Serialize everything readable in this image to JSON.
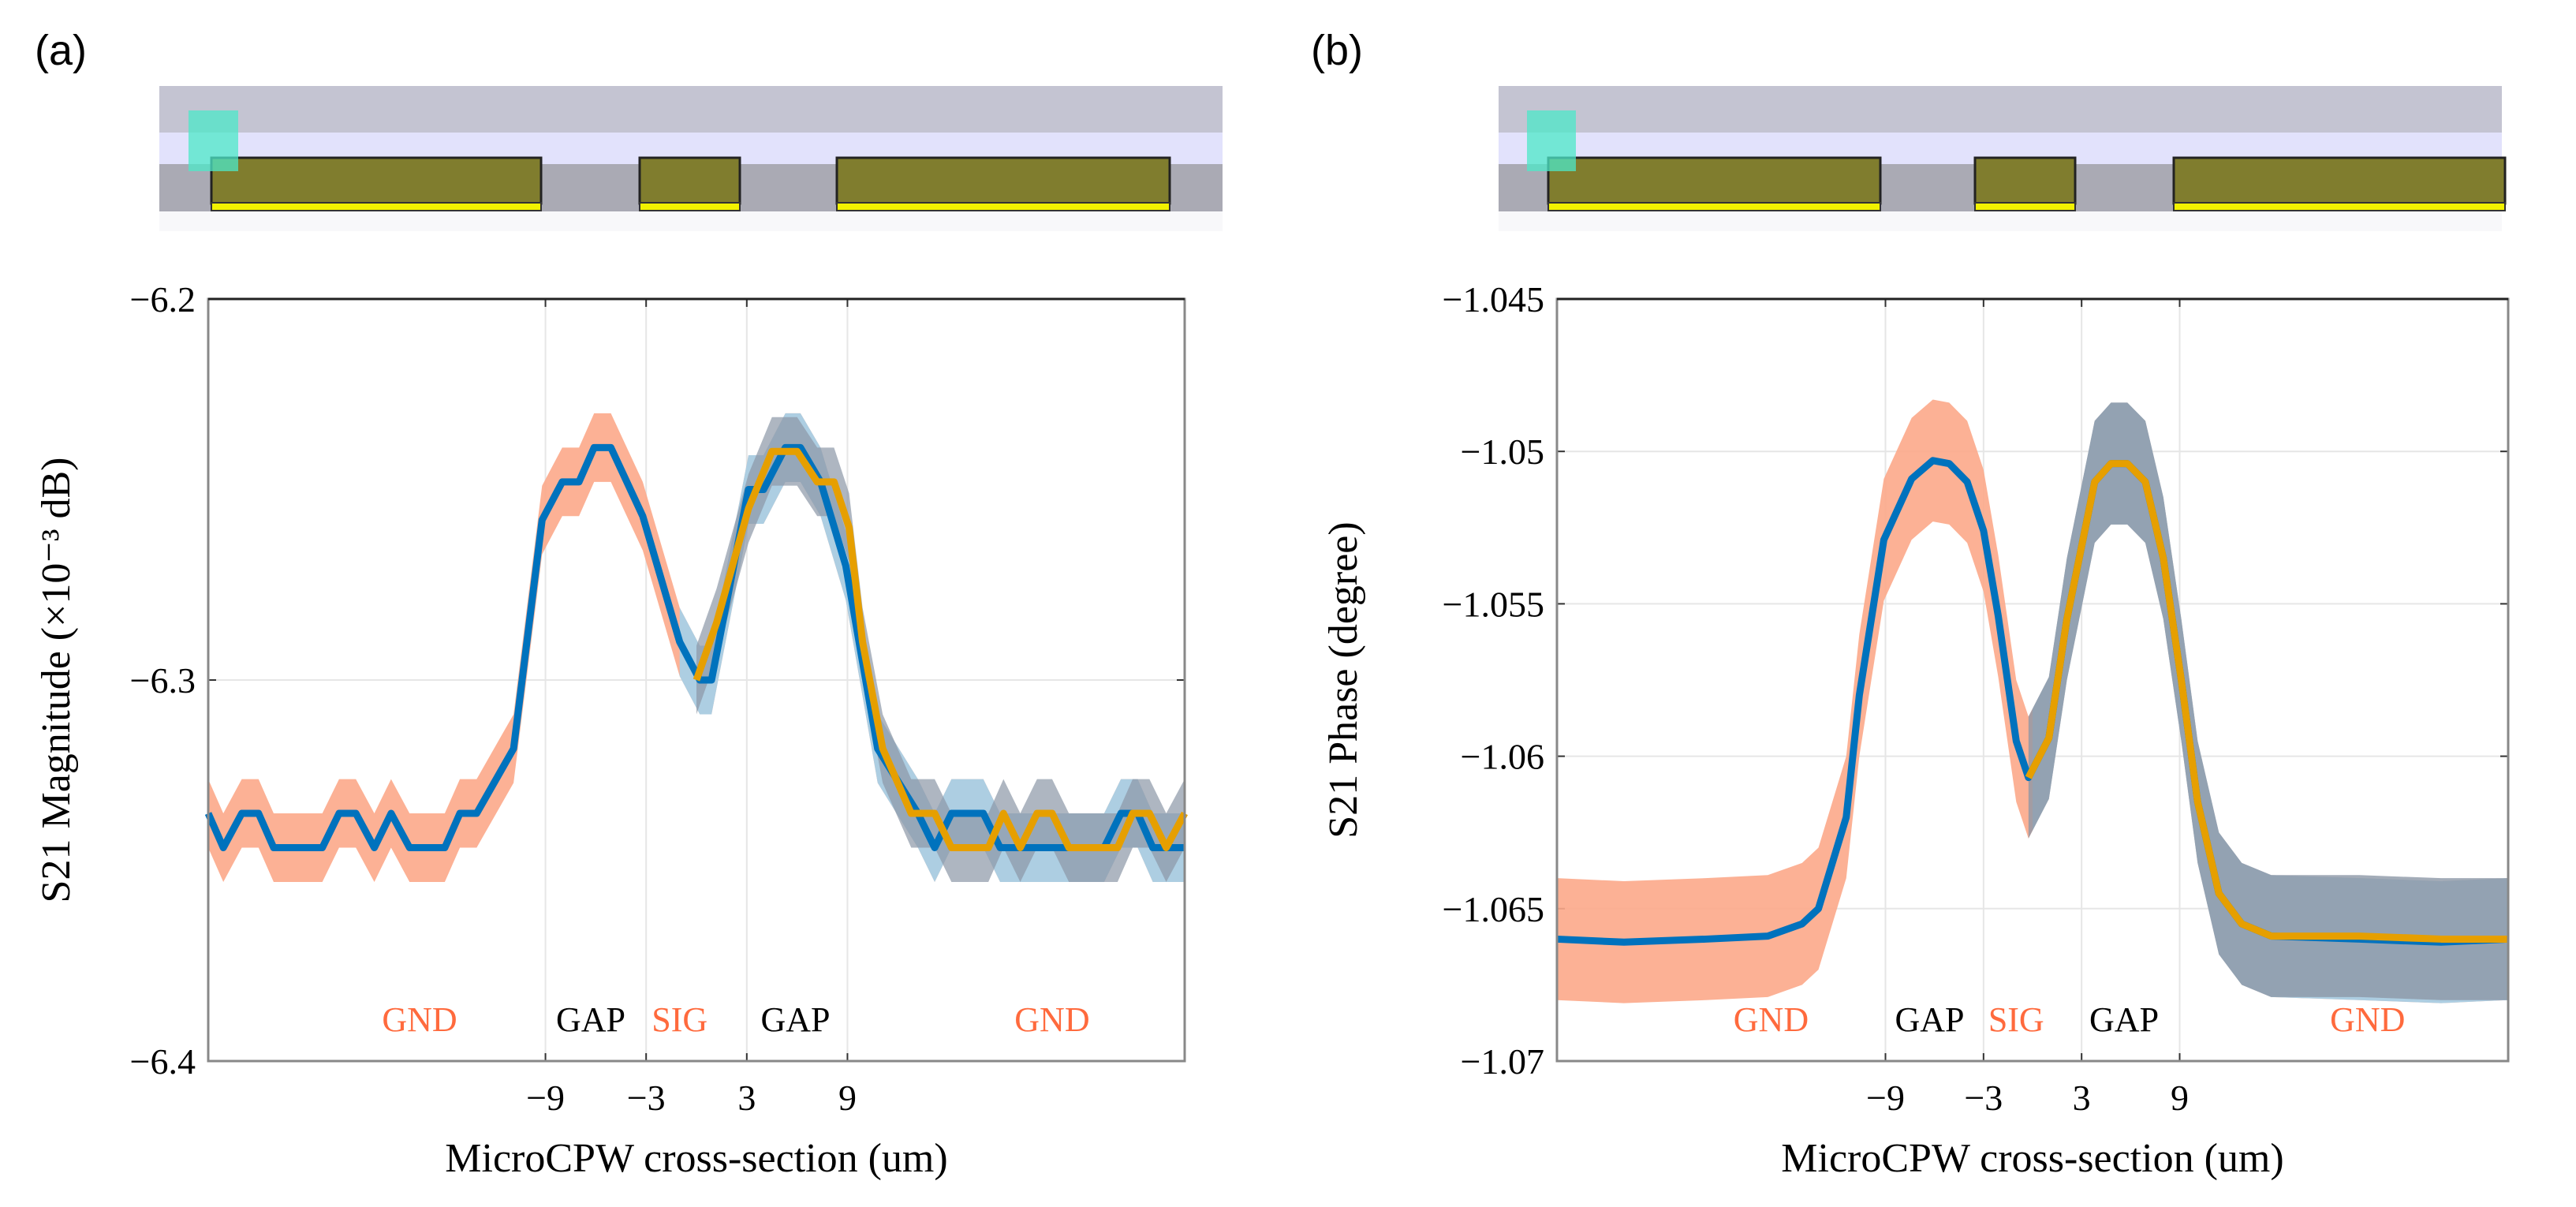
{
  "panels": [
    {
      "label": "(a)"
    },
    {
      "label": "(b)"
    }
  ],
  "diagram_colors": {
    "air_top": "#C4C4D2",
    "dielectric": "#E2E2FC",
    "substrate": "#AAAAB4",
    "metal": "#807D2E",
    "metal_base": "#F2F200",
    "probe": "#4CE8C8"
  },
  "chart_data": [
    {
      "type": "line",
      "title": "",
      "xlabel": "MicroCPW cross-section (um)",
      "ylabel": "S21 Magnitude (×10⁻³ dB)",
      "xlim": [
        -29.1,
        29.1
      ],
      "ylim": [
        -6.4,
        -6.2
      ],
      "xticks": [
        -9,
        -3,
        3,
        9
      ],
      "xtick_labels": [
        "−9",
        "−3",
        "3",
        "9"
      ],
      "yticks": [
        -6.2,
        -6.3,
        -6.4
      ],
      "ytick_labels": [
        "−6.2",
        "−6.3",
        "−6.4"
      ],
      "grid": true,
      "series": [
        {
          "color": "#0072BD",
          "points": [
            [
              -29.1,
              -6.335
            ],
            [
              -28.2,
              -6.344
            ],
            [
              -27.1,
              -6.335
            ],
            [
              -26.1,
              -6.335
            ],
            [
              -25.2,
              -6.344
            ],
            [
              -22.3,
              -6.344
            ],
            [
              -21.3,
              -6.335
            ],
            [
              -20.3,
              -6.335
            ],
            [
              -19.2,
              -6.344
            ],
            [
              -18.2,
              -6.335
            ],
            [
              -17.1,
              -6.344
            ],
            [
              -15,
              -6.344
            ],
            [
              -14.1,
              -6.335
            ],
            [
              -13.1,
              -6.335
            ],
            [
              -10.9,
              -6.318
            ],
            [
              -9.2,
              -6.258
            ],
            [
              -8,
              -6.248
            ],
            [
              -7,
              -6.248
            ],
            [
              -6.1,
              -6.239
            ],
            [
              -5.1,
              -6.239
            ],
            [
              -3.2,
              -6.257
            ],
            [
              -1,
              -6.29
            ],
            [
              0.2,
              -6.3
            ],
            [
              0.9,
              -6.3
            ],
            [
              3.1,
              -6.25
            ],
            [
              4,
              -6.25
            ],
            [
              5.3,
              -6.239
            ],
            [
              6.2,
              -6.239
            ],
            [
              7.4,
              -6.248
            ],
            [
              8.9,
              -6.27
            ],
            [
              10.8,
              -6.318
            ],
            [
              13.2,
              -6.335
            ],
            [
              14.2,
              -6.344
            ],
            [
              15.2,
              -6.335
            ],
            [
              17.1,
              -6.335
            ],
            [
              18.1,
              -6.344
            ],
            [
              24.3,
              -6.344
            ],
            [
              25.3,
              -6.335
            ],
            [
              26.3,
              -6.335
            ],
            [
              27.2,
              -6.344
            ],
            [
              29.1,
              -6.344
            ]
          ]
        },
        {
          "color": "#E69F00",
          "points": [
            [
              0,
              -6.3
            ],
            [
              1.2,
              -6.285
            ],
            [
              3.1,
              -6.255
            ],
            [
              4.5,
              -6.24
            ],
            [
              6,
              -6.24
            ],
            [
              7.2,
              -6.248
            ],
            [
              8.2,
              -6.248
            ],
            [
              9.1,
              -6.26
            ],
            [
              9.9,
              -6.29
            ],
            [
              11.1,
              -6.318
            ],
            [
              12.8,
              -6.335
            ],
            [
              14.2,
              -6.335
            ],
            [
              15.2,
              -6.344
            ],
            [
              17.4,
              -6.344
            ],
            [
              18.3,
              -6.335
            ],
            [
              19.3,
              -6.344
            ],
            [
              20.3,
              -6.335
            ],
            [
              21.2,
              -6.335
            ],
            [
              22.2,
              -6.344
            ],
            [
              25.1,
              -6.344
            ],
            [
              26,
              -6.335
            ],
            [
              27,
              -6.335
            ],
            [
              28,
              -6.344
            ],
            [
              29.1,
              -6.335
            ]
          ]
        }
      ],
      "bands": [
        {
          "series": 0,
          "color": "#FCA98A",
          "opacity": 0.9,
          "from": -29.1,
          "to": 29.1,
          "halfwidth": 0.009
        },
        {
          "series": 0,
          "color": "#9FD3F0",
          "opacity": 0.85,
          "from": -1,
          "to": 29.1,
          "halfwidth": 0.009
        },
        {
          "series": 1,
          "color": "#8C97A6",
          "opacity": 0.7,
          "from": 0,
          "to": 29.1,
          "halfwidth": 0.009
        }
      ],
      "annotations": [
        {
          "text": "GND",
          "x": -16.5,
          "color": "#FF6A3D"
        },
        {
          "text": "GAP",
          "x": -6.3,
          "color": "#000000"
        },
        {
          "text": "SIG",
          "x": -1.0,
          "color": "#FF6A3D"
        },
        {
          "text": "GAP",
          "x": 5.9,
          "color": "#000000"
        },
        {
          "text": "GND",
          "x": 21.2,
          "color": "#FF6A3D"
        }
      ]
    },
    {
      "type": "line",
      "title": "",
      "xlabel": "MicroCPW cross-section (um)",
      "ylabel": "S21 Phase (degree)",
      "xlim": [
        -29.1,
        29.1
      ],
      "ylim": [
        -1.07,
        -1.045
      ],
      "xticks": [
        -9,
        -3,
        3,
        9
      ],
      "xtick_labels": [
        "−9",
        "−3",
        "3",
        "9"
      ],
      "yticks": [
        -1.045,
        -1.05,
        -1.055,
        -1.06,
        -1.065,
        -1.07
      ],
      "ytick_labels": [
        "−1.045",
        "−1.05",
        "−1.055",
        "−1.06",
        "−1.065",
        "−1.07"
      ],
      "grid": true,
      "series": [
        {
          "color": "#0072BD",
          "points": [
            [
              -29.1,
              -1.066
            ],
            [
              -25,
              -1.0661
            ],
            [
              -20,
              -1.066
            ],
            [
              -16.2,
              -1.0659
            ],
            [
              -14.1,
              -1.0655
            ],
            [
              -13.1,
              -1.065
            ],
            [
              -11.4,
              -1.062
            ],
            [
              -10.6,
              -1.058
            ],
            [
              -9.1,
              -1.0529
            ],
            [
              -7.4,
              -1.0509
            ],
            [
              -6.1,
              -1.0503
            ],
            [
              -5.1,
              -1.0504
            ],
            [
              -4,
              -1.051
            ],
            [
              -3,
              -1.0526
            ],
            [
              -2.1,
              -1.0554
            ],
            [
              -1,
              -1.0595
            ],
            [
              -0.25,
              -1.0607
            ],
            [
              1,
              -1.0594
            ],
            [
              2.1,
              -1.0555
            ],
            [
              3.8,
              -1.051
            ],
            [
              4.8,
              -1.0504
            ],
            [
              5.8,
              -1.0504
            ],
            [
              6.9,
              -1.051
            ],
            [
              8,
              -1.0535
            ],
            [
              9.1,
              -1.0575
            ],
            [
              10.1,
              -1.0615
            ],
            [
              11.4,
              -1.0645
            ],
            [
              12.8,
              -1.0655
            ],
            [
              14.6,
              -1.0659
            ],
            [
              20,
              -1.066
            ],
            [
              25,
              -1.0661
            ],
            [
              29.1,
              -1.066
            ]
          ]
        },
        {
          "color": "#E69F00",
          "points": [
            [
              -0.25,
              -1.0607
            ],
            [
              1,
              -1.0594
            ],
            [
              2.1,
              -1.0555
            ],
            [
              3.8,
              -1.051
            ],
            [
              4.8,
              -1.0504
            ],
            [
              5.8,
              -1.0504
            ],
            [
              6.9,
              -1.051
            ],
            [
              8,
              -1.0535
            ],
            [
              9.1,
              -1.0575
            ],
            [
              10.1,
              -1.0615
            ],
            [
              11.4,
              -1.0645
            ],
            [
              12.8,
              -1.0655
            ],
            [
              14.6,
              -1.0659
            ],
            [
              20,
              -1.0659
            ],
            [
              25,
              -1.066
            ],
            [
              29.1,
              -1.066
            ]
          ]
        }
      ],
      "bands": [
        {
          "series": 0,
          "color": "#FCA98A",
          "opacity": 0.9,
          "from": -29.1,
          "to": 29.1,
          "halfwidth": 0.002
        },
        {
          "series": 0,
          "color": "#9FD3F0",
          "opacity": 0.85,
          "from": 0,
          "to": 29.1,
          "halfwidth": 0.002
        },
        {
          "series": 1,
          "color": "#8C97A6",
          "opacity": 0.8,
          "from": -0.25,
          "to": 29.1,
          "halfwidth": 0.002
        }
      ],
      "annotations": [
        {
          "text": "GND",
          "x": -16.0,
          "color": "#FF6A3D"
        },
        {
          "text": "GAP",
          "x": -6.3,
          "color": "#000000"
        },
        {
          "text": "SIG",
          "x": -1.0,
          "color": "#FF6A3D"
        },
        {
          "text": "GAP",
          "x": 5.6,
          "color": "#000000"
        },
        {
          "text": "GND",
          "x": 20.5,
          "color": "#FF6A3D"
        }
      ]
    }
  ]
}
